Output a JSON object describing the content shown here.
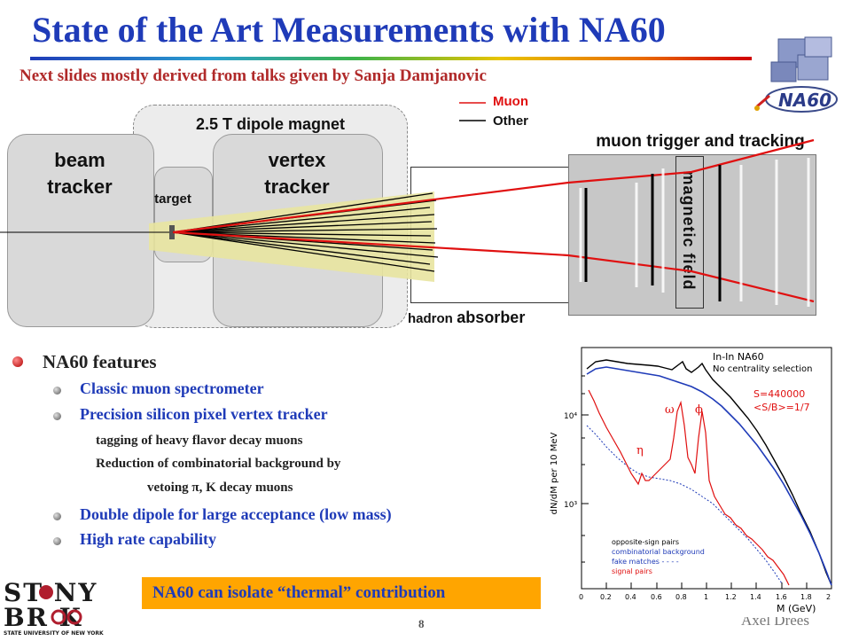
{
  "slide": {
    "title": "State of the Art Measurements with NA60",
    "subtitle": "Next slides mostly derived from talks given by Sanja Damjanovic",
    "logo_text": "NA60",
    "page_number": "8",
    "author": "Axel Drees",
    "university_logo": {
      "line1": "ST NY",
      "line2": "BR K",
      "line3": "STATE UNIVERSITY OF NEW YORK"
    }
  },
  "diagram": {
    "magnet_label": "2.5 T dipole magnet",
    "beam_tracker": "beam\ntracker",
    "target": "target",
    "vertex_tracker": "vertex\ntracker",
    "legend": [
      {
        "label": "Muon",
        "color": "#e01010"
      },
      {
        "label": "Other",
        "color": "#000000"
      }
    ],
    "muon_trigger_label": "muon trigger and tracking",
    "magnetic_field_label": "magnetic field",
    "absorber_label_small": "hadron",
    "absorber_label_big": "absorber"
  },
  "features": {
    "heading": "NA60 features",
    "items": [
      {
        "text": "Classic muon spectrometer"
      },
      {
        "text": "Precision silicon pixel vertex tracker"
      },
      {
        "text": "tagging of heavy flavor decay muons"
      },
      {
        "text": "Reduction of combinatorial background by"
      },
      {
        "text": "vetoing π, K decay muons"
      },
      {
        "text": "Double dipole for large acceptance (low mass)"
      },
      {
        "text": "High rate capability"
      }
    ]
  },
  "callout": "NA60 can isolate “thermal” contribution",
  "plot": {
    "header": "In-In  NA60",
    "subheader": "No centrality selection",
    "s_label": "S=440000",
    "sb_label": "<S/B>=1/7",
    "ylabel": "dN/dM per 10 MeV",
    "xlabel": "M (GeV)",
    "yticks": [
      "10⁴",
      "10³"
    ],
    "xticks": [
      "0",
      "0.2",
      "0.4",
      "0.6",
      "0.8",
      "1",
      "1.2",
      "1.4",
      "1.6",
      "1.8",
      "2"
    ],
    "peak_labels": [
      "ω",
      "ϕ",
      "η"
    ],
    "legend": [
      {
        "label": "opposite-sign pairs",
        "color": "#000000"
      },
      {
        "label": "combinatorial background",
        "color": "#1f3bb8"
      },
      {
        "label": "fake matches - - - -",
        "color": "#1f3bb8"
      },
      {
        "label": "signal pairs",
        "color": "#e01010"
      }
    ]
  }
}
